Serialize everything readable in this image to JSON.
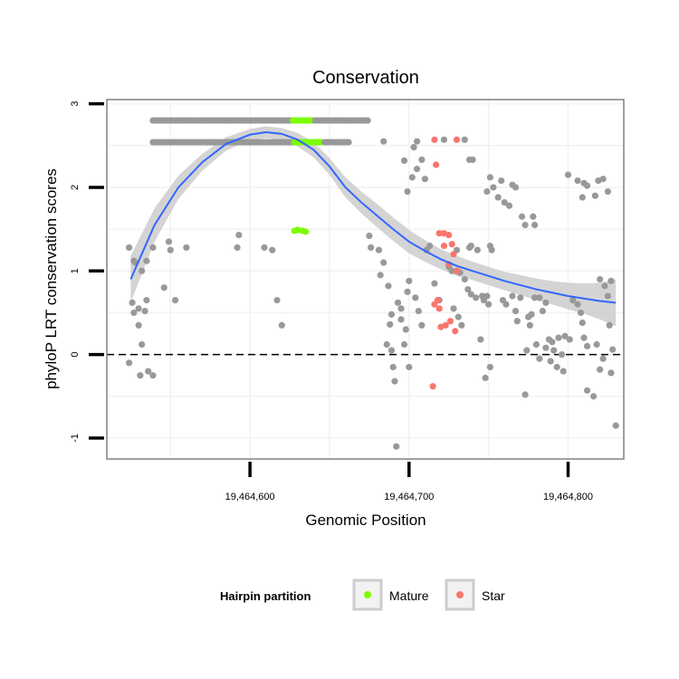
{
  "chart_data": {
    "type": "scatter",
    "title": "Conservation",
    "xlabel": "Genomic Position",
    "ylabel": "phyloP LRT conservation scores",
    "xlim": [
      19464510,
      19464835
    ],
    "ylim": [
      -1.25,
      3.05
    ],
    "x_ticks": [
      19464600,
      19464700,
      19464800
    ],
    "x_tick_labels": [
      "19,464,600",
      "19,464,700",
      "19,464,800"
    ],
    "y_ticks": [
      -1,
      0,
      1,
      2,
      3
    ],
    "y_tick_labels": [
      "-1",
      "0",
      "1",
      "2",
      "3"
    ],
    "reference_line": {
      "y": 0,
      "style": "dashed"
    },
    "colors": {
      "Other": "#999999",
      "Mature": "#7cfc00",
      "Star": "#f8766d",
      "smooth": "#3366ff",
      "ribbon": "#cccccc",
      "panel_border": "#808080",
      "grid": "#f2f2f2"
    },
    "legend": {
      "title": "Hairpin partition",
      "position": "bottom",
      "entries": [
        {
          "label": "Mature",
          "color": "#7cfc00"
        },
        {
          "label": "Star",
          "color": "#f8766d"
        }
      ]
    },
    "bands": [
      {
        "partition": "Other",
        "y": 2.8,
        "x_start": 19464539,
        "x_end": 19464627,
        "step": 1.5
      },
      {
        "partition": "Mature",
        "y": 2.8,
        "x_start": 19464627,
        "x_end": 19464641,
        "step": 1.5
      },
      {
        "partition": "Other",
        "y": 2.8,
        "x_start": 19464641,
        "x_end": 19464675,
        "step": 1.5
      },
      {
        "partition": "Other",
        "y": 2.54,
        "x_start": 19464539,
        "x_end": 19464628,
        "step": 1.5
      },
      {
        "partition": "Mature",
        "y": 2.54,
        "x_start": 19464628,
        "x_end": 19464645,
        "step": 1.5
      },
      {
        "partition": "Other",
        "y": 2.54,
        "x_start": 19464647,
        "x_end": 19464662,
        "step": 1.5
      }
    ],
    "series": [
      {
        "name": "Other",
        "points": [
          [
            19464524,
            1.28
          ],
          [
            19464526,
            0.62
          ],
          [
            19464527,
            1.12
          ],
          [
            19464527,
            0.5
          ],
          [
            19464528,
            1.1
          ],
          [
            19464530,
            0.55
          ],
          [
            19464530,
            0.35
          ],
          [
            19464532,
            0.12
          ],
          [
            19464534,
            0.52
          ],
          [
            19464535,
            1.12
          ],
          [
            19464535,
            0.65
          ],
          [
            19464539,
            1.28
          ],
          [
            19464536,
            -0.2
          ],
          [
            19464531,
            -0.25
          ],
          [
            19464539,
            -0.25
          ],
          [
            19464524,
            -0.1
          ],
          [
            19464532,
            1.0
          ],
          [
            19464546,
            0.8
          ],
          [
            19464550,
            1.25
          ],
          [
            19464549,
            1.35
          ],
          [
            19464553,
            0.65
          ],
          [
            19464560,
            1.28
          ],
          [
            19464592,
            1.28
          ],
          [
            19464593,
            1.43
          ],
          [
            19464609,
            1.28
          ],
          [
            19464614,
            1.25
          ],
          [
            19464617,
            0.65
          ],
          [
            19464620,
            0.35
          ],
          [
            19464675,
            1.42
          ],
          [
            19464676,
            1.28
          ],
          [
            19464681,
            1.25
          ],
          [
            19464684,
            1.1
          ],
          [
            19464682,
            0.95
          ],
          [
            19464687,
            0.82
          ],
          [
            19464689,
            0.48
          ],
          [
            19464688,
            0.36
          ],
          [
            19464686,
            0.12
          ],
          [
            19464689,
            0.05
          ],
          [
            19464690,
            -0.15
          ],
          [
            19464691,
            -0.32
          ],
          [
            19464692,
            -1.1
          ],
          [
            19464693,
            0.62
          ],
          [
            19464695,
            0.55
          ],
          [
            19464695,
            0.42
          ],
          [
            19464698,
            0.3
          ],
          [
            19464700,
            0.88
          ],
          [
            19464699,
            0.75
          ],
          [
            19464704,
            0.68
          ],
          [
            19464706,
            0.52
          ],
          [
            19464708,
            0.35
          ],
          [
            19464697,
            0.12
          ],
          [
            19464700,
            -0.15
          ],
          [
            19464703,
            2.48
          ],
          [
            19464705,
            2.22
          ],
          [
            19464702,
            2.12
          ],
          [
            19464697,
            2.32
          ],
          [
            19464699,
            1.95
          ],
          [
            19464708,
            2.33
          ],
          [
            19464710,
            2.1
          ],
          [
            19464711,
            1.25
          ],
          [
            19464713,
            1.3
          ],
          [
            19464716,
            0.85
          ],
          [
            19464719,
            0.65
          ],
          [
            19464725,
            1.05
          ],
          [
            19464727,
            1.0
          ],
          [
            19464730,
            1.25
          ],
          [
            19464732,
            0.98
          ],
          [
            19464735,
            0.9
          ],
          [
            19464737,
            0.78
          ],
          [
            19464739,
            0.72
          ],
          [
            19464742,
            0.68
          ],
          [
            19464728,
            0.55
          ],
          [
            19464731,
            0.45
          ],
          [
            19464733,
            0.35
          ],
          [
            19464738,
            1.28
          ],
          [
            19464739,
            1.3
          ],
          [
            19464743,
            1.25
          ],
          [
            19464746,
            0.7
          ],
          [
            19464747,
            0.65
          ],
          [
            19464749,
            0.7
          ],
          [
            19464750,
            0.6
          ],
          [
            19464751,
            1.3
          ],
          [
            19464752,
            1.25
          ],
          [
            19464745,
            0.18
          ],
          [
            19464748,
            -0.28
          ],
          [
            19464751,
            -0.15
          ],
          [
            19464749,
            1.95
          ],
          [
            19464751,
            2.12
          ],
          [
            19464753,
            2.0
          ],
          [
            19464756,
            1.88
          ],
          [
            19464758,
            2.08
          ],
          [
            19464760,
            1.82
          ],
          [
            19464763,
            1.78
          ],
          [
            19464765,
            2.03
          ],
          [
            19464767,
            2.0
          ],
          [
            19464771,
            1.65
          ],
          [
            19464773,
            1.55
          ],
          [
            19464778,
            1.65
          ],
          [
            19464779,
            1.55
          ],
          [
            19464759,
            0.65
          ],
          [
            19464761,
            0.6
          ],
          [
            19464765,
            0.7
          ],
          [
            19464767,
            0.52
          ],
          [
            19464768,
            0.4
          ],
          [
            19464770,
            0.68
          ],
          [
            19464775,
            0.45
          ],
          [
            19464777,
            0.48
          ],
          [
            19464780,
            0.12
          ],
          [
            19464774,
            0.05
          ],
          [
            19464776,
            0.35
          ],
          [
            19464779,
            0.68
          ],
          [
            19464782,
            0.68
          ],
          [
            19464784,
            0.52
          ],
          [
            19464786,
            0.62
          ],
          [
            19464790,
            0.15
          ],
          [
            19464794,
            0.2
          ],
          [
            19464798,
            0.22
          ],
          [
            19464801,
            0.18
          ],
          [
            19464803,
            0.65
          ],
          [
            19464806,
            0.6
          ],
          [
            19464808,
            0.5
          ],
          [
            19464809,
            0.38
          ],
          [
            19464810,
            0.2
          ],
          [
            19464812,
            0.1
          ],
          [
            19464786,
            0.08
          ],
          [
            19464788,
            0.18
          ],
          [
            19464791,
            0.05
          ],
          [
            19464796,
            0.0
          ],
          [
            19464789,
            -0.08
          ],
          [
            19464793,
            -0.15
          ],
          [
            19464797,
            -0.2
          ],
          [
            19464773,
            -0.48
          ],
          [
            19464782,
            -0.05
          ],
          [
            19464800,
            2.15
          ],
          [
            19464806,
            2.08
          ],
          [
            19464809,
            1.88
          ],
          [
            19464810,
            2.05
          ],
          [
            19464812,
            2.02
          ],
          [
            19464817,
            1.9
          ],
          [
            19464819,
            2.08
          ],
          [
            19464822,
            2.1
          ],
          [
            19464825,
            1.95
          ],
          [
            19464812,
            -0.43
          ],
          [
            19464816,
            -0.5
          ],
          [
            19464820,
            -0.18
          ],
          [
            19464823,
            0.82
          ],
          [
            19464825,
            0.7
          ],
          [
            19464826,
            0.35
          ],
          [
            19464827,
            0.88
          ],
          [
            19464828,
            0.06
          ],
          [
            19464830,
            -0.85
          ],
          [
            19464818,
            0.12
          ],
          [
            19464820,
            0.9
          ],
          [
            19464822,
            -0.05
          ],
          [
            19464827,
            -0.22
          ],
          [
            19464684,
            2.55
          ],
          [
            19464705,
            2.55
          ],
          [
            19464722,
            2.57
          ],
          [
            19464735,
            2.57
          ],
          [
            19464738,
            2.33
          ],
          [
            19464740,
            2.33
          ]
        ]
      },
      {
        "name": "Mature",
        "points": [
          [
            19464628,
            1.48
          ],
          [
            19464630,
            1.49
          ],
          [
            19464633,
            1.48
          ],
          [
            19464635,
            1.47
          ]
        ]
      },
      {
        "name": "Star",
        "points": [
          [
            19464716,
            2.57
          ],
          [
            19464717,
            2.27
          ],
          [
            19464730,
            2.57
          ],
          [
            19464719,
            1.45
          ],
          [
            19464722,
            1.45
          ],
          [
            19464725,
            1.43
          ],
          [
            19464722,
            1.3
          ],
          [
            19464727,
            1.32
          ],
          [
            19464728,
            1.2
          ],
          [
            19464725,
            1.08
          ],
          [
            19464730,
            1.0
          ],
          [
            19464718,
            0.65
          ],
          [
            19464716,
            0.6
          ],
          [
            19464719,
            0.55
          ],
          [
            19464720,
            0.33
          ],
          [
            19464723,
            0.35
          ],
          [
            19464726,
            0.4
          ],
          [
            19464729,
            0.28
          ],
          [
            19464715,
            -0.38
          ]
        ]
      }
    ],
    "smooth": {
      "x": [
        19464525,
        19464540,
        19464555,
        19464570,
        19464585,
        19464600,
        19464610,
        19464620,
        19464630,
        19464640,
        19464650,
        19464660,
        19464670,
        19464680,
        19464690,
        19464700,
        19464710,
        19464720,
        19464730,
        19464740,
        19464750,
        19464760,
        19464770,
        19464780,
        19464790,
        19464800,
        19464810,
        19464820,
        19464830
      ],
      "y": [
        0.9,
        1.55,
        2.0,
        2.3,
        2.52,
        2.63,
        2.66,
        2.64,
        2.57,
        2.45,
        2.25,
        2.0,
        1.82,
        1.66,
        1.5,
        1.35,
        1.24,
        1.14,
        1.06,
        1.0,
        0.94,
        0.88,
        0.83,
        0.78,
        0.74,
        0.7,
        0.67,
        0.64,
        0.62
      ],
      "ci_half_width": [
        0.28,
        0.2,
        0.14,
        0.1,
        0.08,
        0.07,
        0.07,
        0.07,
        0.08,
        0.09,
        0.1,
        0.12,
        0.13,
        0.14,
        0.14,
        0.14,
        0.13,
        0.12,
        0.12,
        0.11,
        0.11,
        0.11,
        0.12,
        0.13,
        0.14,
        0.16,
        0.18,
        0.22,
        0.28
      ]
    }
  }
}
